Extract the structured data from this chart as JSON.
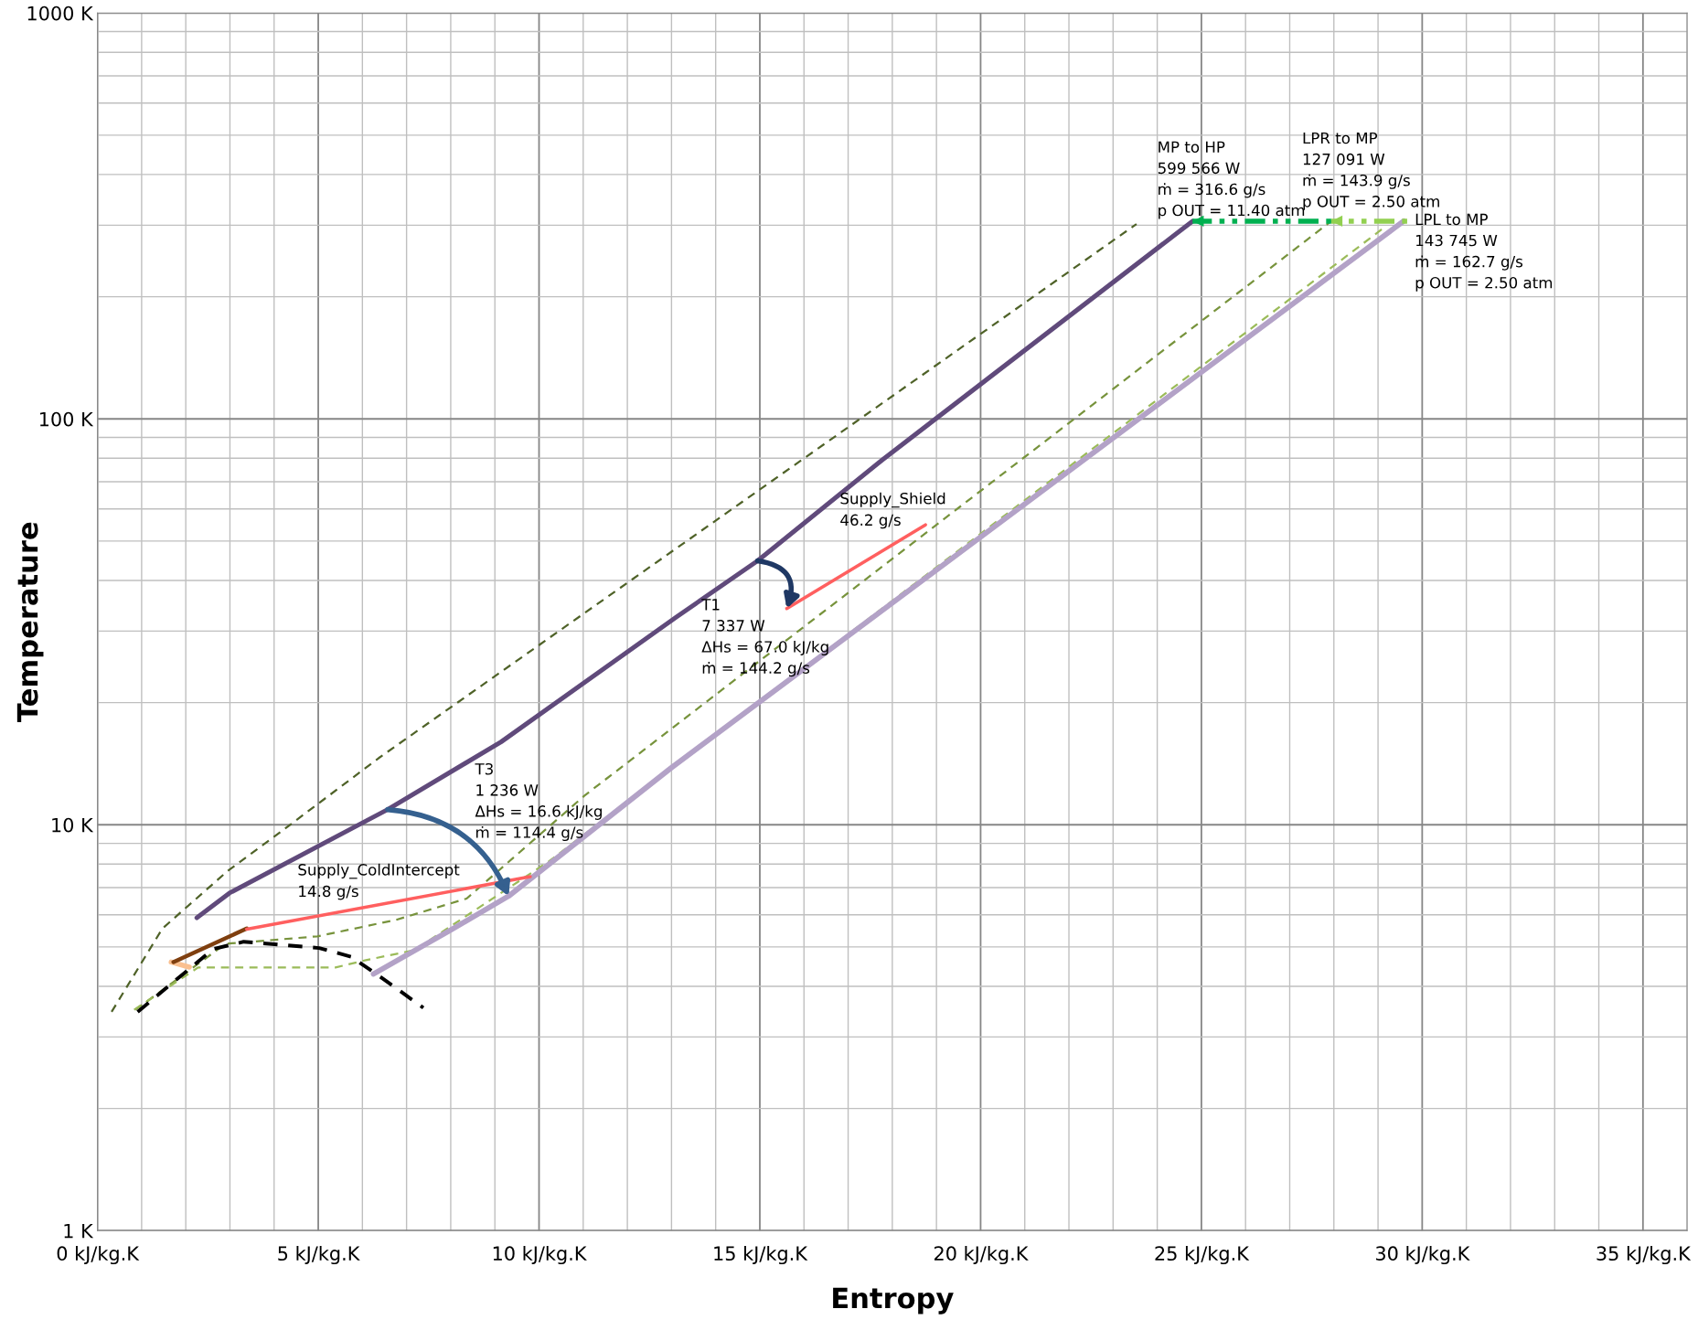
{
  "chart_data": {
    "type": "line",
    "xlabel": "Entropy",
    "ylabel": "Temperature",
    "log": "y",
    "grid": true,
    "legend": false,
    "xlim": [
      0,
      36
    ],
    "ylim": [
      1,
      1000
    ],
    "xticks": [
      {
        "value": 0,
        "label": "0 kJ/kg.K"
      },
      {
        "value": 5,
        "label": "5 kJ/kg.K"
      },
      {
        "value": 10,
        "label": "10 kJ/kg.K"
      },
      {
        "value": 15,
        "label": "15 kJ/kg.K"
      },
      {
        "value": 20,
        "label": "20 kJ/kg.K"
      },
      {
        "value": 25,
        "label": "25 kJ/kg.K"
      },
      {
        "value": 30,
        "label": "30 kJ/kg.K"
      },
      {
        "value": 35,
        "label": "35 kJ/kg.K"
      }
    ],
    "yticks": [
      {
        "value": 1,
        "label": "1 K"
      },
      {
        "value": 10,
        "label": "10 K"
      },
      {
        "value": 100,
        "label": "100 K"
      },
      {
        "value": 1000,
        "label": "1000 K"
      }
    ],
    "series": [
      {
        "color": "#4f6228",
        "line_style": "dashed",
        "x": [
          0.32,
          1.47,
          2.94,
          4.17,
          6.37,
          23.53
        ],
        "values": [
          3.46,
          5.55,
          7.68,
          9.64,
          14.6,
          302
        ]
      },
      {
        "color": "#77933c",
        "line_style": "dashed",
        "x": [
          0.86,
          2.9,
          4.98,
          6.76,
          8.36,
          11.03,
          27.94
        ],
        "values": [
          3.5,
          5.09,
          5.31,
          5.83,
          6.58,
          11.8,
          307
        ]
      },
      {
        "color": "#9bbb59",
        "line_style": "dashed",
        "x": [
          0.83,
          2.28,
          5.39,
          6.08,
          7.18,
          10.22,
          29.19
        ],
        "values": [
          3.5,
          4.45,
          4.45,
          4.64,
          4.91,
          8.12,
          299
        ]
      },
      {
        "color": "#000000",
        "line_style": "dashed",
        "x": [
          0.91,
          2.62,
          3.31,
          5.02,
          5.74,
          6.42,
          7.38
        ],
        "values": [
          3.46,
          4.94,
          5.15,
          4.97,
          4.73,
          4.21,
          3.54
        ]
      },
      {
        "color": "#b3a2c7",
        "line_style": "solid",
        "x": [
          6.25,
          7.97,
          9.31,
          12.99,
          29.58
        ],
        "values": [
          4.29,
          5.48,
          6.67,
          13.8,
          307
        ]
      },
      {
        "color": "#604a7b",
        "line_style": "solid",
        "x": [
          2.25,
          2.99,
          6.57,
          9.14,
          13.11,
          14.95,
          17.77,
          24.8
        ],
        "values": [
          5.9,
          6.79,
          10.9,
          16.0,
          32.5,
          44.7,
          79.2,
          307
        ]
      },
      {
        "color": "#fac090",
        "line_style": "solid",
        "x": [
          1.67,
          2.08
        ],
        "values": [
          4.59,
          4.46
        ]
      },
      {
        "color": "#7f3f0f",
        "line_style": "solid",
        "x": [
          1.72,
          3.38
        ],
        "values": [
          4.59,
          5.55
        ]
      },
      {
        "color": "#ff5f5f",
        "line_style": "solid",
        "x": [
          3.38,
          9.8
        ],
        "values": [
          5.53,
          7.45
        ]
      },
      {
        "color": "#ff5f5f",
        "line_style": "solid",
        "x": [
          15.61,
          18.75
        ],
        "values": [
          34.1,
          54.8
        ]
      },
      {
        "color": "#00b050",
        "line_style": "dotted",
        "x": [
          27.94,
          24.8
        ],
        "values": [
          307,
          307
        ]
      },
      {
        "color": "#92d050",
        "line_style": "dotted",
        "x": [
          29.66,
          27.94
        ],
        "values": [
          307,
          307
        ]
      }
    ],
    "annotations": [
      "MP to HP\n599 566 W\nṁ = 316.6 g/s\np OUT = 11.40 atm",
      "LPR to MP\n127 091 W\nṁ = 143.9 g/s\np OUT = 2.50 atm",
      "LPL to MP\n143 745 W\nṁ = 162.7 g/s\np OUT = 2.50 atm",
      "Supply_Shield\n46.2 g/s",
      "T1\n7 337 W\nΔHs = 67.0 kJ/kg\nṁ = 144.2 g/s",
      "T3\n1 236 W\nΔHs = 16.6 kJ/kg\nṁ = 114.4 g/s",
      "Supply_ColdIntercept\n14.8 g/s"
    ]
  }
}
